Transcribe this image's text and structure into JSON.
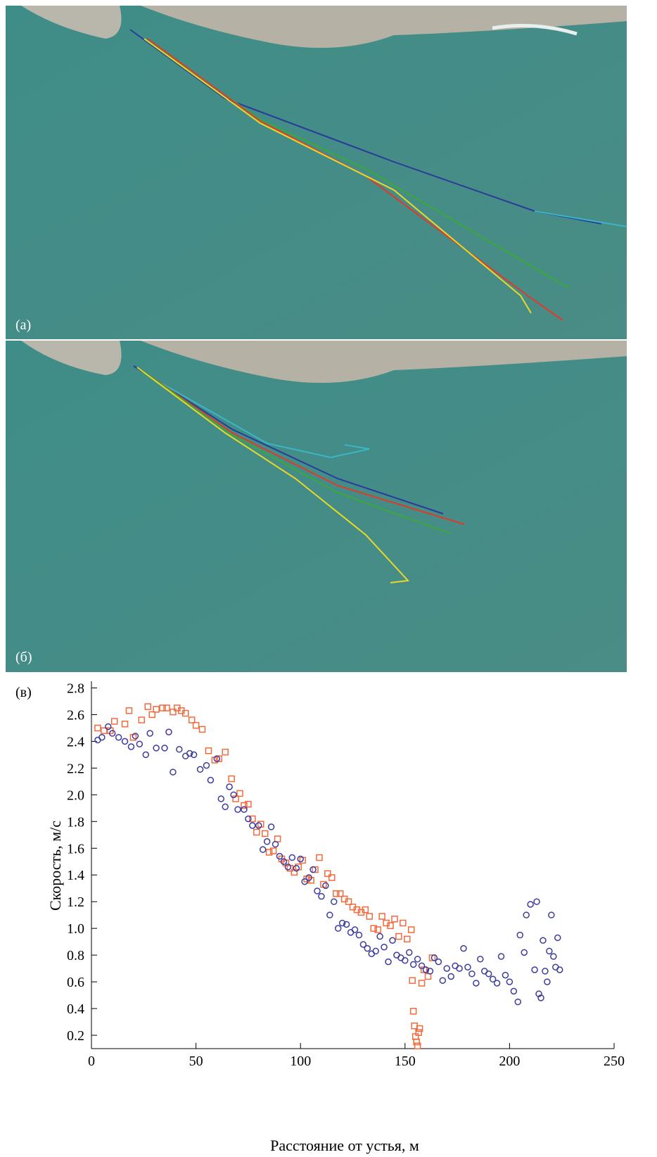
{
  "photos": {
    "a_label": "(а)",
    "b_label": "(б)"
  },
  "chart_data": {
    "type": "scatter",
    "label": "(в)",
    "x_label": "Расстояние от устья, м",
    "y_label": "Скорость, м/с",
    "xlim": [
      0,
      250
    ],
    "xticks": [
      0,
      50,
      100,
      150,
      200,
      250
    ],
    "ylim": [
      0.1,
      2.85
    ],
    "yticks": [
      0.2,
      0.4,
      0.6,
      0.8,
      {
        "value": 1,
        "label": "1.0"
      },
      1.2,
      1.4,
      1.6,
      1.8,
      {
        "value": 2,
        "label": "2.0"
      },
      2.2,
      2.4,
      2.6,
      2.8
    ],
    "series": [
      {
        "marker": "square",
        "color": "#f26a3c",
        "x": [
          3,
          6,
          9,
          11,
          16,
          18,
          20,
          24,
          27,
          29,
          31,
          34,
          36,
          39,
          41,
          43,
          45,
          48,
          50,
          53,
          56,
          59,
          61,
          64,
          67,
          69,
          71,
          73,
          75,
          77,
          79,
          81,
          83,
          85,
          87,
          89,
          91,
          93,
          95,
          97,
          99,
          101,
          103,
          105,
          107,
          109,
          111,
          113,
          115,
          117,
          119,
          121,
          123,
          125,
          127,
          129,
          131,
          133,
          135,
          137,
          139,
          141,
          143,
          145,
          147,
          149,
          151,
          153,
          153.5,
          154,
          154.5,
          155,
          155.5,
          156,
          156.5,
          157,
          158,
          159,
          161,
          163
        ],
        "values": [
          2.5,
          2.48,
          2.48,
          2.55,
          2.53,
          2.63,
          2.43,
          2.56,
          2.66,
          2.6,
          2.64,
          2.65,
          2.65,
          2.62,
          2.65,
          2.63,
          2.61,
          2.56,
          2.52,
          2.49,
          2.33,
          2.26,
          2.27,
          2.32,
          2.12,
          1.97,
          2.01,
          1.92,
          1.93,
          1.82,
          1.72,
          1.78,
          1.71,
          1.57,
          1.58,
          1.67,
          1.52,
          1.49,
          1.45,
          1.42,
          1.46,
          1.51,
          1.37,
          1.36,
          1.44,
          1.53,
          1.33,
          1.41,
          1.38,
          1.26,
          1.26,
          1.22,
          1.2,
          1.16,
          1.14,
          1.12,
          1.14,
          1.09,
          1,
          0.99,
          1.09,
          1.04,
          1.02,
          1.07,
          0.94,
          1.04,
          0.92,
          0.99,
          0.61,
          0.38,
          0.27,
          0.19,
          0.15,
          0.12,
          0.22,
          0.25,
          0.59,
          0.69,
          0.64,
          0.78
        ]
      },
      {
        "marker": "circle",
        "color": "#3b3ba0",
        "x": [
          3,
          5,
          8,
          10,
          13,
          16,
          19,
          21,
          23,
          26,
          28,
          31,
          35,
          37,
          39,
          42,
          45,
          47,
          49,
          52,
          55,
          57,
          60,
          62,
          64,
          66,
          68,
          70,
          73,
          75,
          77,
          80,
          82,
          84,
          86,
          88,
          90,
          92,
          94,
          96,
          98,
          100,
          102,
          104,
          106,
          108,
          110,
          112,
          114,
          116,
          118,
          120,
          122,
          124,
          126,
          128,
          130,
          132,
          134,
          136,
          138,
          140,
          142,
          144,
          146,
          148,
          150,
          152,
          154,
          156,
          158,
          160,
          162,
          164,
          166,
          168,
          170,
          172,
          174,
          176,
          178,
          180,
          182,
          184,
          186,
          188,
          190,
          192,
          194,
          196,
          198,
          200,
          202,
          204,
          205,
          207,
          208,
          210,
          212,
          213,
          214,
          215,
          216,
          217,
          218,
          219,
          220,
          221,
          222,
          223,
          224
        ],
        "values": [
          2.41,
          2.43,
          2.51,
          2.46,
          2.43,
          2.4,
          2.36,
          2.44,
          2.38,
          2.3,
          2.46,
          2.35,
          2.35,
          2.47,
          2.17,
          2.34,
          2.29,
          2.31,
          2.3,
          2.19,
          2.22,
          2.11,
          2.27,
          1.97,
          1.91,
          2.06,
          2,
          1.89,
          1.89,
          1.82,
          1.77,
          1.77,
          1.59,
          1.65,
          1.76,
          1.63,
          1.54,
          1.5,
          1.46,
          1.53,
          1.45,
          1.52,
          1.35,
          1.38,
          1.44,
          1.28,
          1.24,
          1.32,
          1.1,
          1.2,
          1,
          1.04,
          1.03,
          0.97,
          0.99,
          0.95,
          0.88,
          0.85,
          0.81,
          0.83,
          0.94,
          0.86,
          0.75,
          0.91,
          0.8,
          0.78,
          0.76,
          0.82,
          0.73,
          0.77,
          0.72,
          0.69,
          0.68,
          0.78,
          0.75,
          0.61,
          0.7,
          0.64,
          0.72,
          0.7,
          0.85,
          0.71,
          0.66,
          0.59,
          0.77,
          0.68,
          0.66,
          0.62,
          0.59,
          0.79,
          0.65,
          0.6,
          0.53,
          0.45,
          0.95,
          0.82,
          1.1,
          1.18,
          0.69,
          1.2,
          0.51,
          0.48,
          0.91,
          0.68,
          0.6,
          0.83,
          1.1,
          0.79,
          0.71,
          0.93,
          0.69
        ]
      }
    ]
  }
}
